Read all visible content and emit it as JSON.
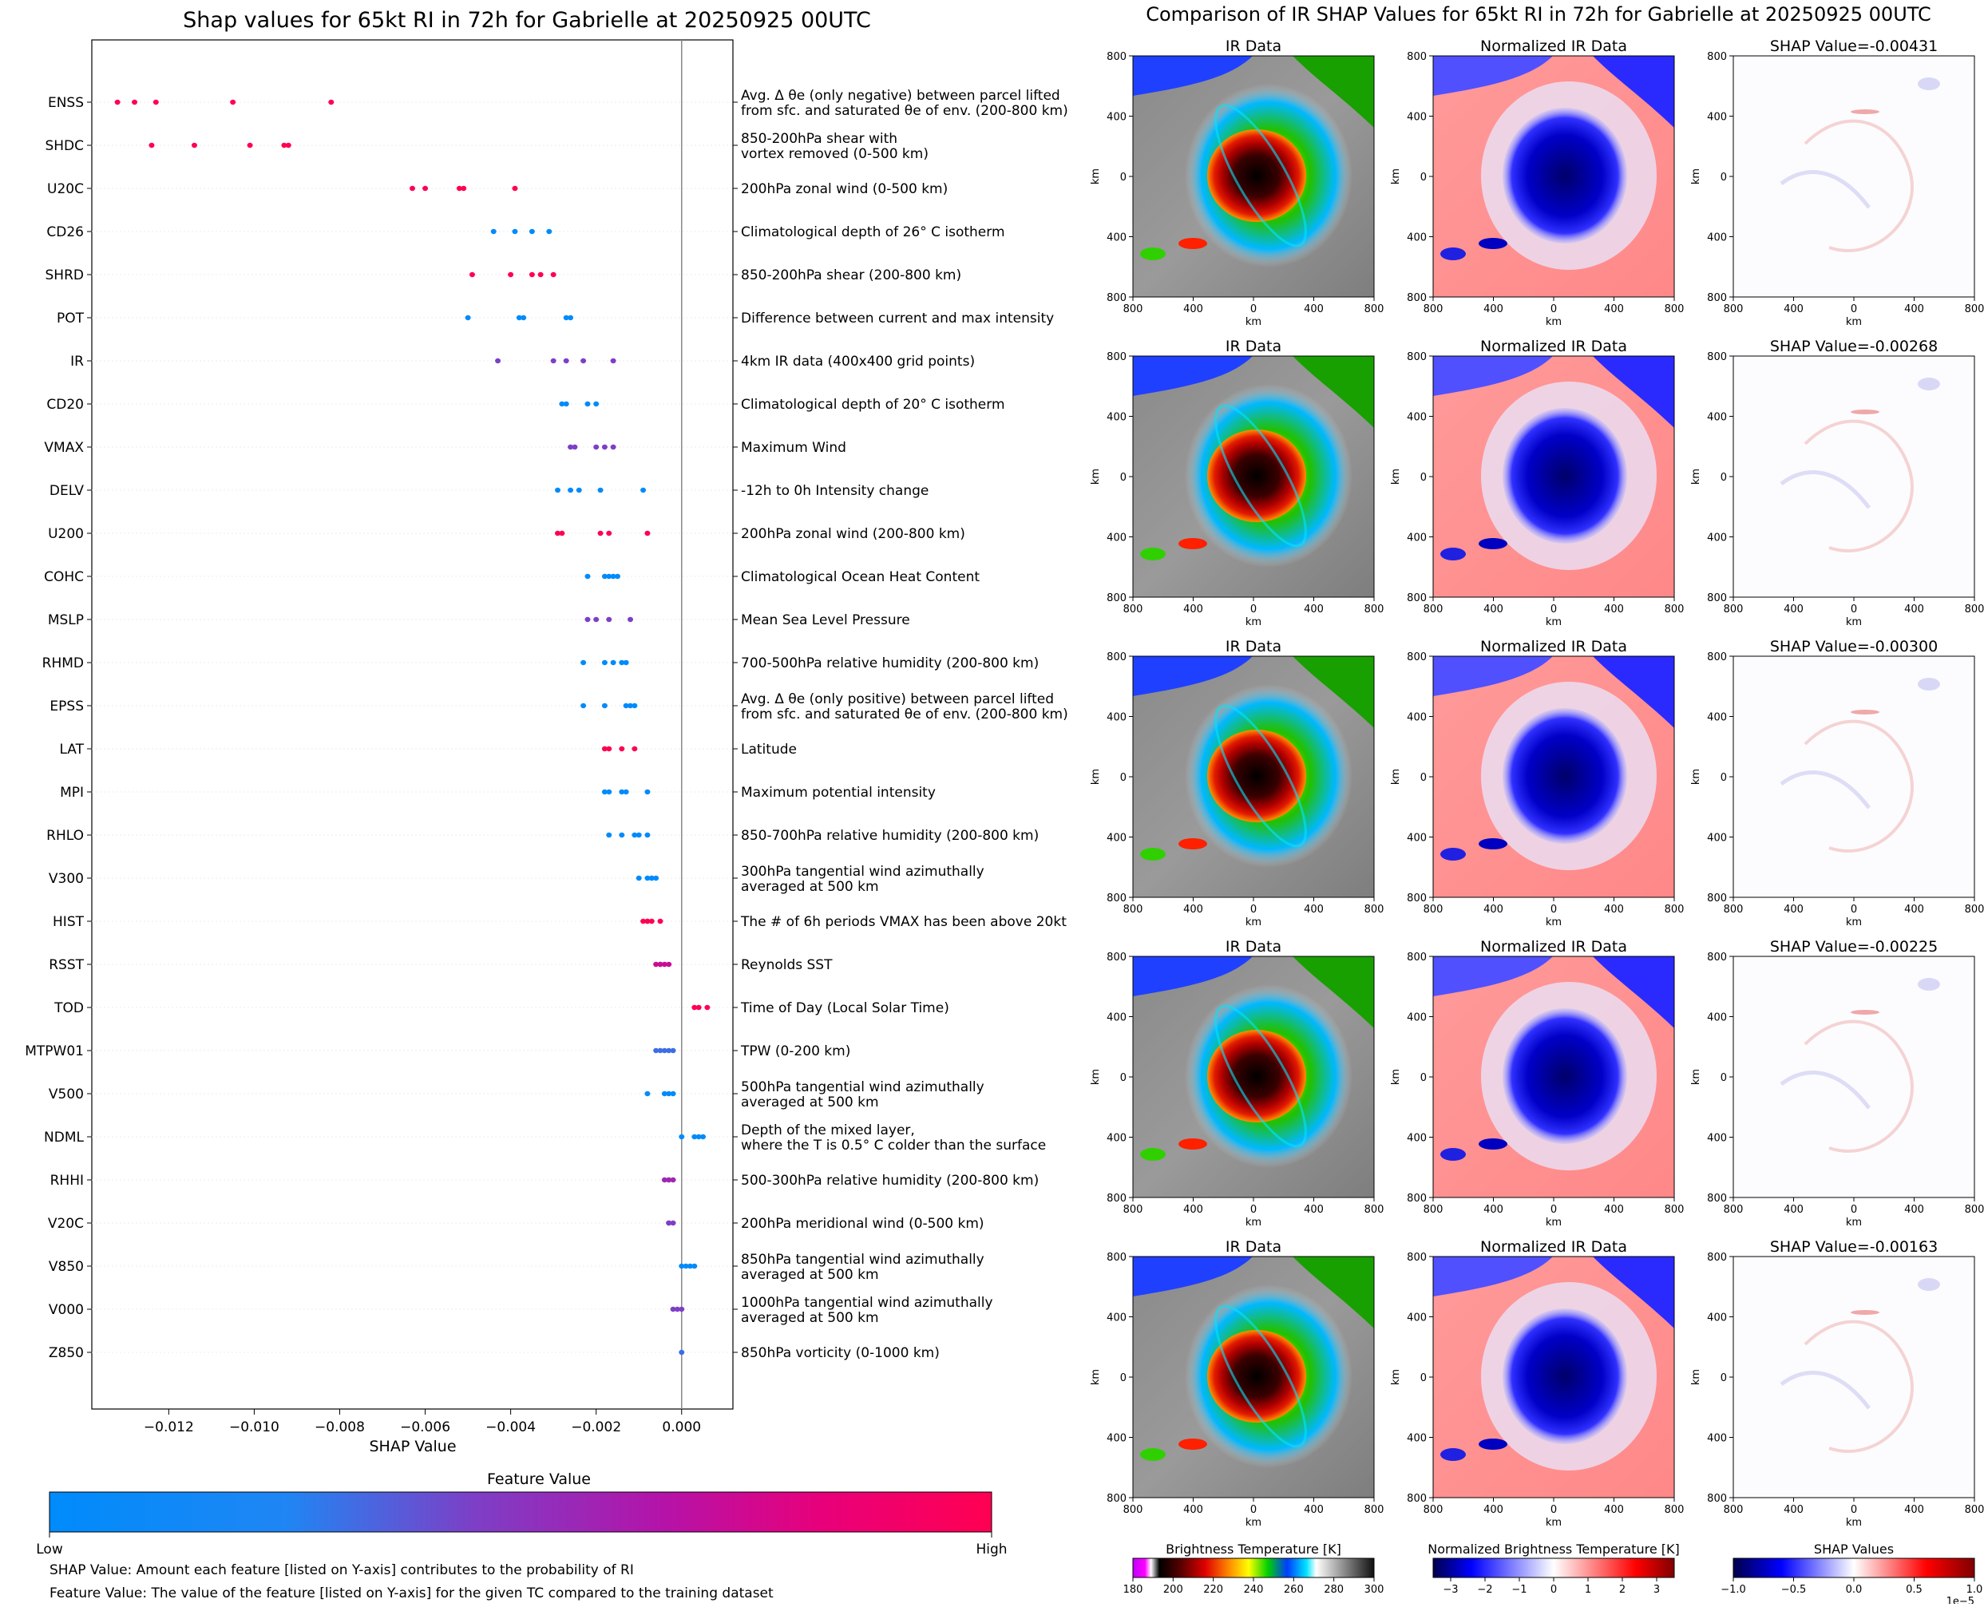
{
  "left_title": "Shap values for 65kt RI in 72h for Gabrielle at 20250925 00UTC",
  "right_title": "Comparison of IR SHAP Values for 65kt RI in 72h for Gabrielle at 20250925 00UTC",
  "chart_data": [
    {
      "type": "scatter",
      "title": "Shap values for 65kt RI in 72h for Gabrielle at 20250925 00UTC",
      "xlabel": "SHAP Value",
      "xlim": [
        -0.0138,
        0.0012
      ],
      "xticks": [
        -0.012,
        -0.01,
        -0.008,
        -0.006,
        -0.004,
        -0.002,
        0.0
      ],
      "xtick_labels": [
        "−0.012",
        "−0.010",
        "−0.008",
        "−0.006",
        "−0.004",
        "−0.002",
        "0.000"
      ],
      "features": [
        {
          "name": "ENSS",
          "desc": [
            "Avg. Δ θe (only negative) between parcel lifted",
            "from sfc. and saturated θe of env. (200-800 km)"
          ],
          "feature_value": 1.0,
          "shap": [
            -0.0132,
            -0.0128,
            -0.0123,
            -0.0105,
            -0.0082
          ]
        },
        {
          "name": "SHDC",
          "desc": [
            "850-200hPa shear with",
            "vortex removed (0-500 km)"
          ],
          "feature_value": 1.0,
          "shap": [
            -0.0124,
            -0.0114,
            -0.0101,
            -0.0093,
            -0.0092
          ]
        },
        {
          "name": "U20C",
          "desc": [
            "200hPa zonal wind (0-500 km)"
          ],
          "feature_value": 1.0,
          "shap": [
            -0.0063,
            -0.006,
            -0.0052,
            -0.0051,
            -0.0039
          ]
        },
        {
          "name": "CD26",
          "desc": [
            "Climatological depth of 26° C isotherm"
          ],
          "feature_value": 0.0,
          "shap": [
            -0.0044,
            -0.0039,
            -0.0035,
            -0.0031
          ]
        },
        {
          "name": "SHRD",
          "desc": [
            "850-200hPa shear (200-800 km)"
          ],
          "feature_value": 1.0,
          "shap": [
            -0.0049,
            -0.004,
            -0.0035,
            -0.0033,
            -0.003
          ]
        },
        {
          "name": "POT",
          "desc": [
            "Difference between current and max intensity"
          ],
          "feature_value": 0.0,
          "shap": [
            -0.005,
            -0.0038,
            -0.0037,
            -0.0027,
            -0.0026
          ]
        },
        {
          "name": "IR",
          "desc": [
            "4km IR data (400x400 grid points)"
          ],
          "feature_value": 0.5,
          "shap": [
            -0.0043,
            -0.003,
            -0.0027,
            -0.0023,
            -0.0016
          ]
        },
        {
          "name": "CD20",
          "desc": [
            "Climatological depth of 20° C isotherm"
          ],
          "feature_value": 0.0,
          "shap": [
            -0.0028,
            -0.0027,
            -0.0022,
            -0.002
          ]
        },
        {
          "name": "VMAX",
          "desc": [
            "Maximum Wind"
          ],
          "feature_value": 0.5,
          "shap": [
            -0.0026,
            -0.0025,
            -0.002,
            -0.0018,
            -0.0016
          ]
        },
        {
          "name": "DELV",
          "desc": [
            "-12h to 0h Intensity change"
          ],
          "feature_value": 0.0,
          "shap": [
            -0.0029,
            -0.0026,
            -0.0024,
            -0.0019,
            -0.0009
          ]
        },
        {
          "name": "U200",
          "desc": [
            "200hPa zonal wind (200-800 km)"
          ],
          "feature_value": 1.0,
          "shap": [
            -0.0029,
            -0.0028,
            -0.0019,
            -0.0017,
            -0.0008
          ]
        },
        {
          "name": "COHC",
          "desc": [
            "Climatological Ocean Heat Content"
          ],
          "feature_value": 0.0,
          "shap": [
            -0.0022,
            -0.0018,
            -0.0017,
            -0.0016,
            -0.0015
          ]
        },
        {
          "name": "MSLP",
          "desc": [
            "Mean Sea Level Pressure"
          ],
          "feature_value": 0.5,
          "shap": [
            -0.0022,
            -0.002,
            -0.0017,
            -0.0012
          ]
        },
        {
          "name": "RHMD",
          "desc": [
            "700-500hPa relative humidity (200-800 km)"
          ],
          "feature_value": 0.0,
          "shap": [
            -0.0023,
            -0.0018,
            -0.0016,
            -0.0014,
            -0.0013
          ]
        },
        {
          "name": "EPSS",
          "desc": [
            "Avg. Δ θe (only positive) between parcel lifted",
            "from sfc. and saturated θe of env. (200-800 km)"
          ],
          "feature_value": 0.0,
          "shap": [
            -0.0023,
            -0.0018,
            -0.0013,
            -0.0012,
            -0.0011
          ]
        },
        {
          "name": "LAT",
          "desc": [
            "Latitude"
          ],
          "feature_value": 1.0,
          "shap": [
            -0.0018,
            -0.0017,
            -0.0014,
            -0.0011
          ]
        },
        {
          "name": "MPI",
          "desc": [
            "Maximum potential intensity"
          ],
          "feature_value": 0.0,
          "shap": [
            -0.0018,
            -0.0017,
            -0.0014,
            -0.0013,
            -0.0008
          ]
        },
        {
          "name": "RHLO",
          "desc": [
            "850-700hPa relative humidity (200-800 km)"
          ],
          "feature_value": 0.0,
          "shap": [
            -0.0017,
            -0.0014,
            -0.0011,
            -0.001,
            -0.0008
          ]
        },
        {
          "name": "V300",
          "desc": [
            "300hPa tangential wind azimuthally",
            "averaged at 500 km"
          ],
          "feature_value": 0.0,
          "shap": [
            -0.001,
            -0.0008,
            -0.0007,
            -0.0007,
            -0.0006
          ]
        },
        {
          "name": "HIST",
          "desc": [
            "The # of 6h periods VMAX has been above 20kt"
          ],
          "feature_value": 1.0,
          "shap": [
            -0.0009,
            -0.0008,
            -0.0008,
            -0.0007,
            -0.0005
          ]
        },
        {
          "name": "RSST",
          "desc": [
            "Reynolds SST"
          ],
          "feature_value": 0.75,
          "shap": [
            -0.0006,
            -0.0005,
            -0.0005,
            -0.0004,
            -0.0003
          ]
        },
        {
          "name": "TOD",
          "desc": [
            "Time of Day (Local Solar Time)"
          ],
          "feature_value": 1.0,
          "shap": [
            0.0003,
            0.0004,
            0.0006
          ]
        },
        {
          "name": "MTPW01",
          "desc": [
            "TPW (0-200 km)"
          ],
          "feature_value": 0.35,
          "shap": [
            -0.0006,
            -0.0005,
            -0.0004,
            -0.0003,
            -0.0002
          ]
        },
        {
          "name": "V500",
          "desc": [
            "500hPa tangential wind azimuthally",
            "averaged at 500 km"
          ],
          "feature_value": 0.0,
          "shap": [
            -0.0008,
            -0.0004,
            -0.0003,
            -0.0002
          ]
        },
        {
          "name": "NDML",
          "desc": [
            "Depth of the mixed layer,",
            "where the T is 0.5° C colder than the surface"
          ],
          "feature_value": 0.0,
          "shap": [
            0.0,
            0.0003,
            0.0004,
            0.0005
          ]
        },
        {
          "name": "RHHI",
          "desc": [
            "500-300hPa relative humidity (200-800 km)"
          ],
          "feature_value": 0.6,
          "shap": [
            -0.0004,
            -0.0003,
            -0.0003,
            -0.0002
          ]
        },
        {
          "name": "V20C",
          "desc": [
            "200hPa meridional wind (0-500 km)"
          ],
          "feature_value": 0.5,
          "shap": [
            -0.0003,
            -0.0003,
            -0.0002
          ]
        },
        {
          "name": "V850",
          "desc": [
            "850hPa tangential wind azimuthally",
            "averaged at 500 km"
          ],
          "feature_value": 0.0,
          "shap": [
            0.0,
            0.0001,
            0.0002,
            0.0003
          ]
        },
        {
          "name": "V000",
          "desc": [
            "1000hPa tangential wind azimuthally",
            "averaged at 500 km"
          ],
          "feature_value": 0.5,
          "shap": [
            -0.0002,
            -0.0001,
            0.0
          ]
        },
        {
          "name": "Z850",
          "desc": [
            "850hPa vorticity (0-1000 km)"
          ],
          "feature_value": 0.35,
          "shap": [
            0.0
          ]
        }
      ]
    },
    {
      "type": "heatmap",
      "title": "Comparison of IR SHAP Values for 65kt RI in 72h for Gabrielle at 20250925 00UTC",
      "xlabel": "km",
      "ylabel": "km",
      "axis_range": [
        -800,
        800
      ],
      "tick_labels": [
        "800",
        "400",
        "0",
        "400",
        "800"
      ],
      "column_titles": [
        "IR Data",
        "Normalized IR Data"
      ],
      "shap_panel_titles": [
        "SHAP Value=-0.00431",
        "SHAP Value=-0.00268",
        "SHAP Value=-0.00300",
        "SHAP Value=-0.00225",
        "SHAP Value=-0.00163"
      ]
    }
  ],
  "colorbar_main": {
    "title": "Feature Value",
    "low": "Low",
    "high": "High",
    "color_low": "#008bfb",
    "color_high": "#ff0052"
  },
  "footnotes": [
    "SHAP Value: Amount each feature [listed on Y-axis] contributes to the probability of RI",
    "Feature Value: The value of the feature [listed on Y-axis] for the given TC compared to the training dataset"
  ],
  "colorbars": [
    {
      "title": "Brightness Temperature [K]",
      "ticks": [
        "180",
        "200",
        "220",
        "240",
        "260",
        "280",
        "300"
      ]
    },
    {
      "title": "Normalized Brightness Temperature [K]",
      "ticks": [
        "−3",
        "−2",
        "−1",
        "0",
        "1",
        "2",
        "3"
      ]
    },
    {
      "title": "SHAP Values",
      "ticks": [
        "−1.0",
        "−0.5",
        "0.0",
        "0.5",
        "1.0"
      ],
      "offset": "1e−5"
    }
  ]
}
